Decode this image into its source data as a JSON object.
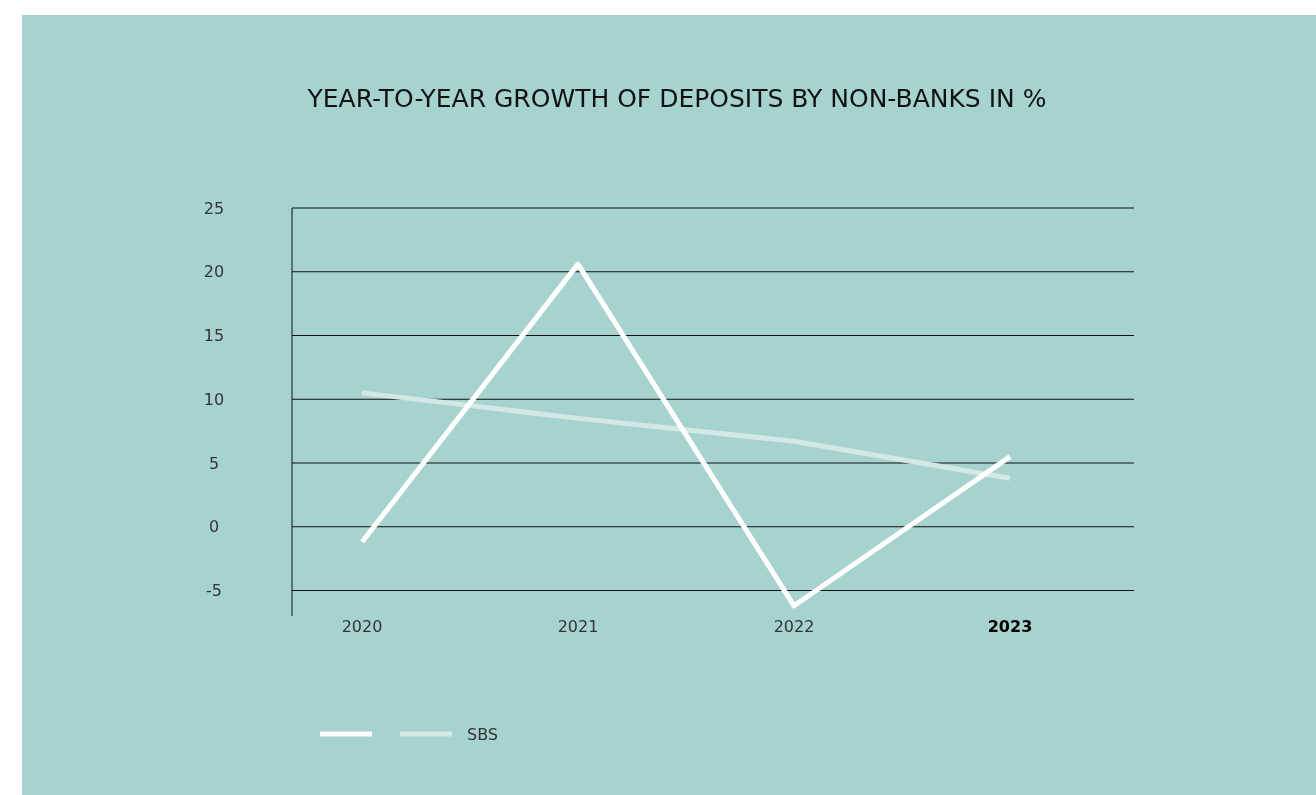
{
  "chart_data": {
    "type": "line",
    "title": "YEAR-TO-YEAR GROWTH OF DEPOSITS BY NON-BANKS IN %",
    "categories": [
      "2020",
      "2021",
      "2022",
      "2023"
    ],
    "series": [
      {
        "color": "#ffffff",
        "values": [
          -1.2,
          20.6,
          -6.2,
          5.5
        ]
      },
      {
        "name": "SBS",
        "color": "#d3e8e5",
        "values": [
          10.5,
          8.5,
          6.7,
          3.8
        ]
      }
    ],
    "ylim": [
      -7,
      25
    ],
    "yticks": [
      -5,
      0,
      5,
      10,
      15,
      20,
      25
    ],
    "grid": "y",
    "legend": "bottom left",
    "marker": "none",
    "line_style": "solid"
  }
}
